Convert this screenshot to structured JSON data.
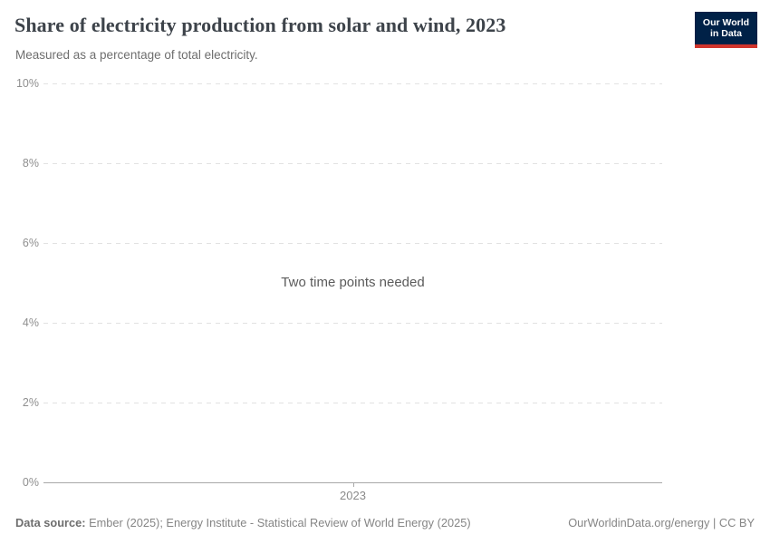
{
  "header": {
    "title": "Share of electricity production from solar and wind, 2023",
    "subtitle": "Measured as a percentage of total electricity."
  },
  "logo": {
    "line1": "Our World",
    "line2": "in Data",
    "background_color": "#002147",
    "accent_color": "#d0342c",
    "text_color": "#ffffff"
  },
  "chart_data": {
    "type": "line",
    "title": "Share of electricity production from solar and wind, 2023",
    "subtitle": "Measured as a percentage of total electricity.",
    "xlabel": "",
    "ylabel": "",
    "ylim": [
      0,
      10
    ],
    "grid": true,
    "yticks": [
      {
        "value": 0,
        "label": "0%"
      },
      {
        "value": 2,
        "label": "2%"
      },
      {
        "value": 4,
        "label": "4%"
      },
      {
        "value": 6,
        "label": "6%"
      },
      {
        "value": 8,
        "label": "8%"
      },
      {
        "value": 10,
        "label": "10%"
      }
    ],
    "xticks": [
      {
        "label": "2023",
        "position": 0.5
      }
    ],
    "series": [],
    "empty_state_message": "Two time points needed",
    "colors": {
      "gridline": "#e2e2e2",
      "axis_line": "#a8a8a8",
      "tick_label": "#8f8f8f"
    }
  },
  "footer": {
    "data_source_label": "Data source:",
    "data_source_text": " Ember (2025); Energy Institute - Statistical Review of World Energy (2025)",
    "credit": "OurWorldinData.org/energy | CC BY"
  }
}
